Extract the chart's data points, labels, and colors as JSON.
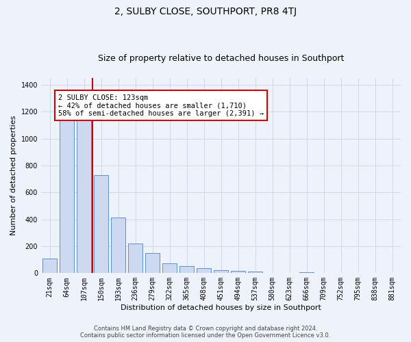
{
  "title": "2, SULBY CLOSE, SOUTHPORT, PR8 4TJ",
  "subtitle": "Size of property relative to detached houses in Southport",
  "xlabel": "Distribution of detached houses by size in Southport",
  "ylabel": "Number of detached properties",
  "bar_labels": [
    "21sqm",
    "64sqm",
    "107sqm",
    "150sqm",
    "193sqm",
    "236sqm",
    "279sqm",
    "322sqm",
    "365sqm",
    "408sqm",
    "451sqm",
    "494sqm",
    "537sqm",
    "580sqm",
    "623sqm",
    "666sqm",
    "709sqm",
    "752sqm",
    "795sqm",
    "838sqm",
    "881sqm"
  ],
  "bar_values": [
    107,
    1155,
    1155,
    730,
    415,
    220,
    148,
    72,
    50,
    35,
    22,
    15,
    10,
    0,
    0,
    8,
    0,
    0,
    0,
    0,
    0
  ],
  "bar_color": "#ccd9f0",
  "bar_edge_color": "#6090c8",
  "vline_color": "#cc0000",
  "vline_position": 2.5,
  "annotation_text": "2 SULBY CLOSE: 123sqm\n← 42% of detached houses are smaller (1,710)\n58% of semi-detached houses are larger (2,391) →",
  "annotation_box_color": "#ffffff",
  "annotation_box_edge": "#cc0000",
  "ylim": [
    0,
    1450
  ],
  "yticks": [
    0,
    200,
    400,
    600,
    800,
    1000,
    1200,
    1400
  ],
  "footnote": "Contains HM Land Registry data © Crown copyright and database right 2024.\nContains public sector information licensed under the Open Government Licence v3.0.",
  "bg_color": "#eef2fa",
  "grid_color": "#c8d4e8",
  "title_fontsize": 10,
  "subtitle_fontsize": 9,
  "axis_label_fontsize": 8,
  "tick_fontsize": 7,
  "footnote_fontsize": 6,
  "annotation_fontsize": 7.5
}
